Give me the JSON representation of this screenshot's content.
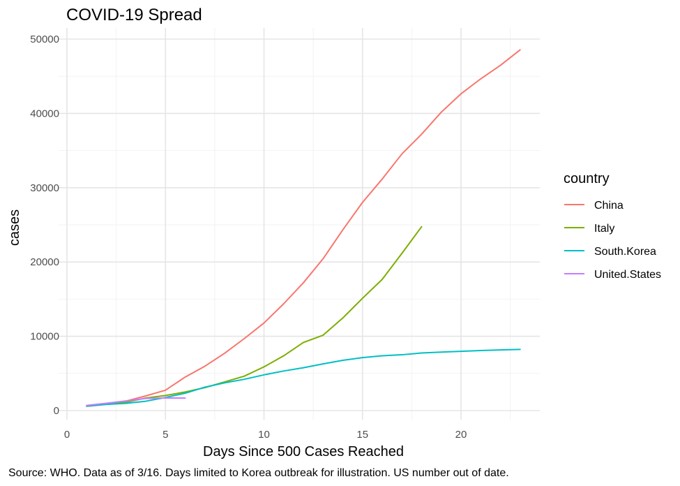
{
  "chart_data": {
    "type": "line",
    "title": "COVID-19 Spread",
    "xlabel": "Days Since 500 Cases Reached",
    "ylabel": "cases",
    "xlim": [
      0,
      24
    ],
    "ylim": [
      0,
      50000
    ],
    "x_ticks": [
      0,
      5,
      10,
      15,
      20
    ],
    "x_tick_labels": [
      "0",
      "5",
      "10",
      "15",
      "20"
    ],
    "y_ticks": [
      0,
      10000,
      20000,
      30000,
      40000,
      50000
    ],
    "y_tick_labels": [
      "0",
      "10000",
      "20000",
      "30000",
      "40000",
      "50000"
    ],
    "grid": true,
    "legend": {
      "title": "country",
      "position": "right"
    },
    "caption": "Source: WHO. Data as of 3/16. Days limited to Korea outbreak for illustration. US number out of date.",
    "series": [
      {
        "name": "China",
        "color": "#F8766D",
        "x": [
          1,
          2,
          3,
          4,
          5,
          6,
          7,
          8,
          9,
          10,
          11,
          12,
          13,
          14,
          15,
          16,
          17,
          18,
          19,
          20,
          21,
          22,
          23
        ],
        "values": [
          571,
          830,
          1287,
          1975,
          2744,
          4515,
          5974,
          7711,
          9692,
          11791,
          14380,
          17205,
          20438,
          24324,
          28018,
          31161,
          34546,
          37198,
          40171,
          42638,
          44653,
          46472,
          48548
        ]
      },
      {
        "name": "Italy",
        "color": "#7CAE00",
        "x": [
          1,
          2,
          3,
          4,
          5,
          6,
          7,
          8,
          9,
          10,
          11,
          12,
          13,
          14,
          15,
          16,
          17,
          18
        ],
        "values": [
          650,
          888,
          1128,
          1694,
          2036,
          2502,
          3089,
          3858,
          4636,
          5883,
          7375,
          9172,
          10149,
          12462,
          15113,
          17660,
          21157,
          24747
        ]
      },
      {
        "name": "South.Korea",
        "color": "#00BFC4",
        "x": [
          1,
          2,
          3,
          4,
          5,
          6,
          7,
          8,
          9,
          10,
          11,
          12,
          13,
          14,
          15,
          16,
          17,
          18,
          19,
          20,
          21,
          22,
          23
        ],
        "values": [
          602,
          833,
          977,
          1261,
          1766,
          2337,
          3150,
          3736,
          4212,
          4812,
          5328,
          5766,
          6284,
          6767,
          7134,
          7382,
          7513,
          7755,
          7869,
          7979,
          8086,
          8162,
          8236
        ]
      },
      {
        "name": "United.States",
        "color": "#C77CFF",
        "x": [
          1,
          2,
          3,
          4,
          5,
          6
        ],
        "values": [
          696,
          987,
          1301,
          1630,
          1700,
          1678
        ]
      }
    ]
  }
}
